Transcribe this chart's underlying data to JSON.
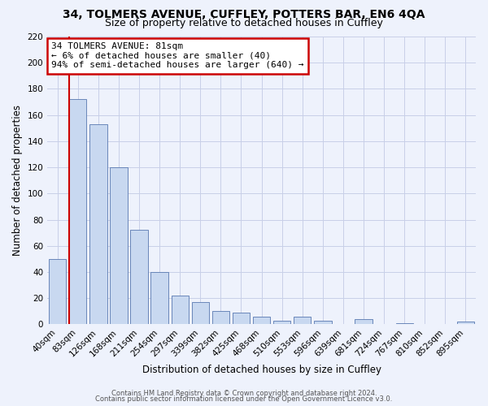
{
  "title1": "34, TOLMERS AVENUE, CUFFLEY, POTTERS BAR, EN6 4QA",
  "title2": "Size of property relative to detached houses in Cuffley",
  "xlabel": "Distribution of detached houses by size in Cuffley",
  "ylabel": "Number of detached properties",
  "bar_labels": [
    "40sqm",
    "83sqm",
    "126sqm",
    "168sqm",
    "211sqm",
    "254sqm",
    "297sqm",
    "339sqm",
    "382sqm",
    "425sqm",
    "468sqm",
    "510sqm",
    "553sqm",
    "596sqm",
    "639sqm",
    "681sqm",
    "724sqm",
    "767sqm",
    "810sqm",
    "852sqm",
    "895sqm"
  ],
  "bar_values": [
    50,
    172,
    153,
    120,
    72,
    40,
    22,
    17,
    10,
    9,
    6,
    3,
    6,
    3,
    0,
    4,
    0,
    1,
    0,
    0,
    2
  ],
  "bar_color": "#c8d8f0",
  "bar_edge_color": "#5878b0",
  "vline_color": "#cc0000",
  "annotation_title": "34 TOLMERS AVENUE: 81sqm",
  "annotation_line1": "← 6% of detached houses are smaller (40)",
  "annotation_line2": "94% of semi-detached houses are larger (640) →",
  "annotation_box_color": "#ffffff",
  "annotation_box_edge": "#cc0000",
  "ylim": [
    0,
    220
  ],
  "yticks": [
    0,
    20,
    40,
    60,
    80,
    100,
    120,
    140,
    160,
    180,
    200,
    220
  ],
  "footer1": "Contains HM Land Registry data © Crown copyright and database right 2024.",
  "footer2": "Contains public sector information licensed under the Open Government Licence v3.0.",
  "bg_color": "#eef2fc",
  "plot_bg_color": "#eef2fc",
  "grid_color": "#c8cfe8",
  "title1_fontsize": 10,
  "title2_fontsize": 9
}
